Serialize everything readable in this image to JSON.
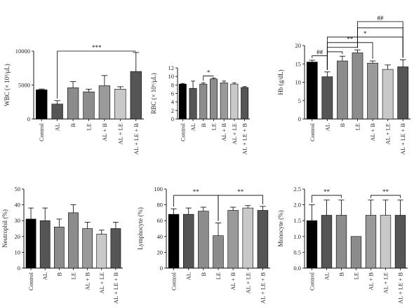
{
  "chart_data": [
    {
      "id": "wbc",
      "type": "bar",
      "ylabel": "WBC (× 10³/μL)",
      "categories": [
        "Control",
        "AL",
        "B",
        "LE",
        "AL + B",
        "AL + LE",
        "AL + LE + B"
      ],
      "values": [
        4300,
        2200,
        4600,
        4000,
        4900,
        4400,
        7000
      ],
      "errors": [
        120,
        500,
        900,
        400,
        1500,
        350,
        2800
      ],
      "ylim": [
        0,
        10000
      ],
      "yticks": [
        0,
        5000,
        10000
      ],
      "colors": [
        "#000000",
        "#555555",
        "#8c8c8c",
        "#8c8c8c",
        "#9a9a9a",
        "#c9c9c9",
        "#555555"
      ],
      "annotations": [
        {
          "from": 1,
          "to": 6,
          "label": "***",
          "y": 10000
        }
      ]
    },
    {
      "id": "rbc",
      "type": "bar",
      "ylabel": "RBC (× 10⁶/μL)",
      "categories": [
        "Control",
        "AL",
        "B",
        "LE",
        "AL + B",
        "AL + LE",
        "AL + LE + B"
      ],
      "values": [
        8.2,
        7.2,
        8.2,
        9.4,
        8.5,
        8.2,
        7.4
      ],
      "errors": [
        0.15,
        1.7,
        0.3,
        0.25,
        0.4,
        0.3,
        0.2
      ],
      "ylim": [
        0,
        12
      ],
      "yticks": [
        0,
        2,
        4,
        6,
        8,
        10,
        12
      ],
      "colors": [
        "#000000",
        "#555555",
        "#8c8c8c",
        "#8c8c8c",
        "#9a9a9a",
        "#c9c9c9",
        "#555555"
      ],
      "annotations": [
        {
          "from": 2,
          "to": 3,
          "label": "*",
          "y": 10.1
        }
      ]
    },
    {
      "id": "hb",
      "type": "bar",
      "ylabel": "Hb (g/dL)",
      "categories": [
        "Control",
        "AL",
        "B",
        "LE",
        "AL + B",
        "AL + LE",
        "AL + LE + B"
      ],
      "values": [
        15.5,
        11.5,
        15.8,
        18.0,
        15.2,
        13.5,
        14.2
      ],
      "errors": [
        0.5,
        1.3,
        1.3,
        0.8,
        0.6,
        1.2,
        1.9
      ],
      "ylim": [
        0,
        20
      ],
      "yticks": [
        0,
        5,
        10,
        15,
        20
      ],
      "colors": [
        "#000000",
        "#555555",
        "#8c8c8c",
        "#8c8c8c",
        "#9a9a9a",
        "#c9c9c9",
        "#555555"
      ],
      "annotations": [
        {
          "from": 0,
          "to": 1,
          "label": "##",
          "y": 17.2
        },
        {
          "from": 1,
          "to": 2,
          "label": "",
          "y": 18.3
        },
        {
          "from": 1,
          "to": 3,
          "label": "",
          "y": 19.5
        },
        {
          "from": 1,
          "to": 4,
          "label": "**",
          "y": 20.8
        },
        {
          "from": 1,
          "to": 6,
          "label": "*",
          "y": 22.3
        },
        {
          "from": 3,
          "to": 6,
          "label": "",
          "y": 24.8
        },
        {
          "from": 3,
          "to": 6,
          "label": "##",
          "y": 26.5
        }
      ]
    },
    {
      "id": "neutrophil",
      "type": "bar",
      "ylabel": "Neutrophil (%)",
      "categories": [
        "Control",
        "AL",
        "B",
        "LE",
        "AL + B",
        "AL + LE",
        "AL + LE + B"
      ],
      "values": [
        31,
        30,
        26,
        35,
        25,
        21.5,
        25
      ],
      "errors": [
        7,
        8,
        5,
        5,
        4,
        2.5,
        4
      ],
      "ylim": [
        0,
        50
      ],
      "yticks": [
        0,
        10,
        20,
        30,
        40,
        50
      ],
      "colors": [
        "#000000",
        "#555555",
        "#8c8c8c",
        "#8c8c8c",
        "#9a9a9a",
        "#c9c9c9",
        "#555555"
      ],
      "annotations": []
    },
    {
      "id": "lymphocyte",
      "type": "bar",
      "ylabel": "Lymphocyte (%)",
      "categories": [
        "Control",
        "AL",
        "B",
        "LE",
        "AL + B",
        "AL + LE",
        "AL + LE + B"
      ],
      "values": [
        68,
        68,
        72,
        41,
        73,
        76,
        73
      ],
      "errors": [
        7,
        8,
        5,
        16,
        4,
        3,
        5
      ],
      "ylim": [
        0,
        100
      ],
      "yticks": [
        0,
        20,
        40,
        60,
        80,
        100
      ],
      "colors": [
        "#000000",
        "#555555",
        "#8c8c8c",
        "#8c8c8c",
        "#9a9a9a",
        "#c9c9c9",
        "#555555"
      ],
      "annotations": [
        {
          "from": 0,
          "to": 3,
          "label": "**",
          "y": 92
        },
        {
          "from": 3,
          "to": 6,
          "label": "**",
          "y": 92
        }
      ]
    },
    {
      "id": "monocyte",
      "type": "bar",
      "ylabel": "Monocyte (%)",
      "categories": [
        "Control",
        "AL",
        "B",
        "LE",
        "AL + B",
        "AL + LE",
        "AL + LE + B"
      ],
      "values": [
        1.5,
        1.67,
        1.67,
        1.0,
        1.67,
        1.67,
        1.67
      ],
      "errors": [
        0.5,
        0.48,
        0.48,
        0.0,
        0.48,
        0.48,
        0.48
      ],
      "ylim": [
        0,
        2.5
      ],
      "yticks": [
        0,
        0.5,
        1.0,
        1.5,
        2.0,
        2.5
      ],
      "colors": [
        "#000000",
        "#555555",
        "#8c8c8c",
        "#8c8c8c",
        "#9a9a9a",
        "#c9c9c9",
        "#555555"
      ],
      "annotations": [
        {
          "from": 0,
          "to": 2,
          "label": "**",
          "y": 2.3
        },
        {
          "from": 4,
          "to": 6,
          "label": "**",
          "y": 2.3
        }
      ]
    }
  ]
}
